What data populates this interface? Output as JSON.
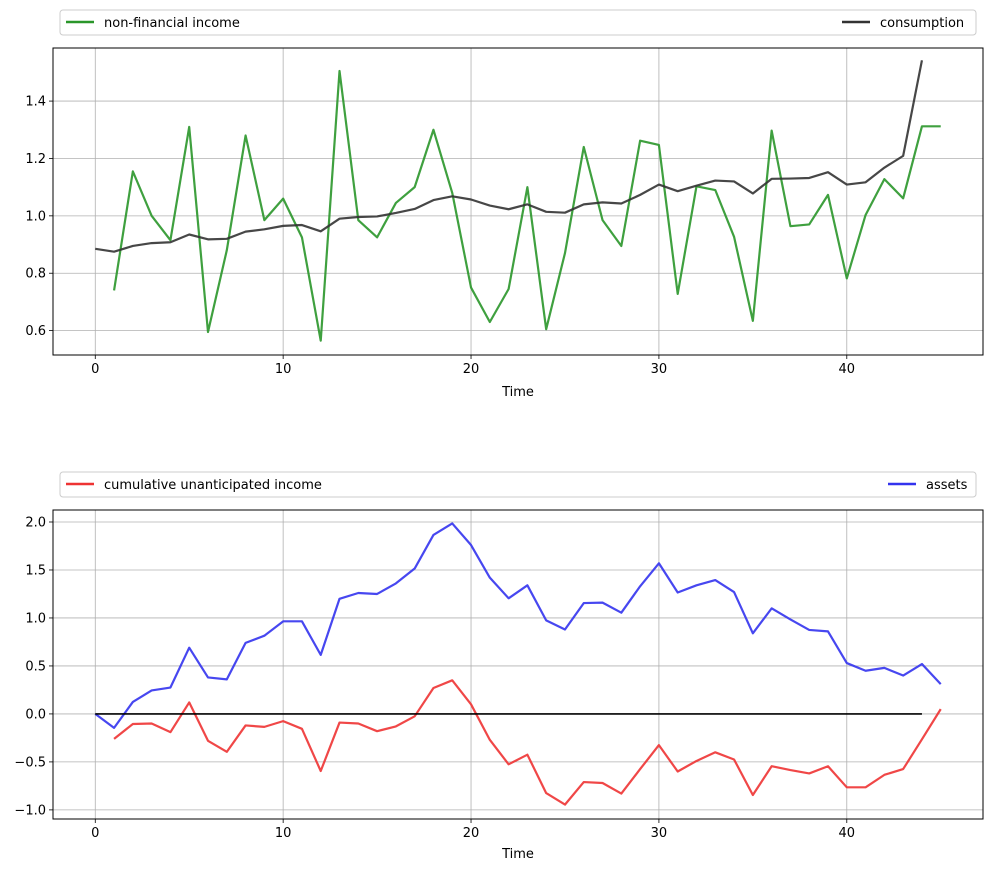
{
  "chart_data": [
    {
      "type": "line",
      "xlabel": "Time",
      "ylabel": "",
      "xlim": [
        -2.25,
        47.25
      ],
      "ylim": [
        0.515,
        1.585
      ],
      "xticks": [
        0,
        10,
        20,
        30,
        40
      ],
      "yticks": [
        0.6,
        0.8,
        1.0,
        1.2,
        1.4
      ],
      "ytick_labels": [
        "0.6",
        "0.8",
        "1.0",
        "1.2",
        "1.4"
      ],
      "grid": true,
      "legend_placement": "above-plot-expanded",
      "series": [
        {
          "name": "non-financial income",
          "color": "#2a962a",
          "x": [
            1,
            2,
            3,
            4,
            5,
            6,
            7,
            8,
            9,
            10,
            11,
            12,
            13,
            14,
            15,
            16,
            17,
            18,
            19,
            20,
            21,
            22,
            23,
            24,
            25,
            26,
            27,
            28,
            29,
            30,
            31,
            32,
            33,
            34,
            35,
            36,
            37,
            38,
            39,
            40,
            41,
            42,
            43,
            44,
            45
          ],
          "y": [
            0.74,
            1.155,
            1.0,
            0.915,
            1.31,
            0.595,
            0.88,
            1.28,
            0.985,
            1.06,
            0.925,
            0.565,
            1.505,
            0.985,
            0.925,
            1.045,
            1.1,
            1.3,
            1.08,
            0.75,
            0.63,
            0.745,
            1.1,
            0.605,
            0.87,
            1.24,
            0.985,
            0.895,
            1.262,
            1.247,
            0.728,
            1.103,
            1.09,
            0.927,
            0.634,
            1.297,
            0.964,
            0.97,
            1.073,
            0.782,
            1.003,
            1.128,
            1.061,
            1.312,
            1.312
          ]
        },
        {
          "name": "consumption",
          "color": "#333333",
          "x": [
            0,
            1,
            2,
            3,
            4,
            5,
            6,
            7,
            8,
            9,
            10,
            11,
            12,
            13,
            14,
            15,
            16,
            17,
            18,
            19,
            20,
            21,
            22,
            23,
            24,
            25,
            26,
            27,
            28,
            29,
            30,
            31,
            32,
            33,
            34,
            35,
            36,
            37,
            38,
            39,
            40,
            41,
            42,
            43,
            44
          ],
          "y": [
            0.885,
            0.875,
            0.895,
            0.905,
            0.908,
            0.935,
            0.918,
            0.92,
            0.945,
            0.953,
            0.965,
            0.968,
            0.946,
            0.99,
            0.996,
            0.998,
            1.01,
            1.024,
            1.055,
            1.068,
            1.057,
            1.036,
            1.023,
            1.04,
            1.014,
            1.011,
            1.04,
            1.047,
            1.043,
            1.073,
            1.109,
            1.086,
            1.105,
            1.123,
            1.12,
            1.078,
            1.129,
            1.13,
            1.132,
            1.152,
            1.109,
            1.117,
            1.168,
            1.209,
            1.542
          ]
        }
      ]
    },
    {
      "type": "line",
      "xlabel": "Time",
      "ylabel": "",
      "xlim": [
        -2.25,
        47.25
      ],
      "ylim": [
        -1.095,
        2.125
      ],
      "xticks": [
        0,
        10,
        20,
        30,
        40
      ],
      "yticks": [
        -1.0,
        -0.5,
        0.0,
        0.5,
        1.0,
        1.5,
        2.0
      ],
      "ytick_labels": [
        "−1.0",
        "−0.5",
        "0.0",
        "0.5",
        "1.0",
        "1.5",
        "2.0"
      ],
      "grid": true,
      "legend_placement": "above-plot-expanded",
      "series": [
        {
          "name": "cumulative unanticipated income",
          "color": "#ee3333",
          "x": [
            1,
            2,
            3,
            4,
            5,
            6,
            7,
            8,
            9,
            10,
            11,
            12,
            13,
            14,
            15,
            16,
            17,
            18,
            19,
            20,
            21,
            22,
            23,
            24,
            25,
            26,
            27,
            28,
            29,
            30,
            31,
            32,
            33,
            34,
            35,
            36,
            37,
            38,
            39,
            40,
            41,
            42,
            43,
            44,
            45
          ],
          "y": [
            -0.26,
            -0.105,
            -0.1,
            -0.19,
            0.12,
            -0.28,
            -0.395,
            -0.12,
            -0.135,
            -0.075,
            -0.155,
            -0.595,
            -0.09,
            -0.1,
            -0.18,
            -0.13,
            -0.025,
            0.27,
            0.35,
            0.1,
            -0.27,
            -0.525,
            -0.425,
            -0.825,
            -0.945,
            -0.71,
            -0.72,
            -0.83,
            -0.575,
            -0.325,
            -0.6,
            -0.49,
            -0.4,
            -0.475,
            -0.845,
            -0.545,
            -0.585,
            -0.62,
            -0.545,
            -0.765,
            -0.765,
            -0.635,
            -0.575,
            -0.265,
            0.05
          ]
        },
        {
          "name": "assets",
          "color": "#3333ee",
          "x": [
            0,
            1,
            2,
            3,
            4,
            5,
            6,
            7,
            8,
            9,
            10,
            11,
            12,
            13,
            14,
            15,
            16,
            17,
            18,
            19,
            20,
            21,
            22,
            23,
            24,
            25,
            26,
            27,
            28,
            29,
            30,
            31,
            32,
            33,
            34,
            35,
            36,
            37,
            38,
            39,
            40,
            41,
            42,
            43,
            44,
            45
          ],
          "y": [
            0.0,
            -0.145,
            0.125,
            0.245,
            0.275,
            0.69,
            0.38,
            0.36,
            0.74,
            0.815,
            0.965,
            0.965,
            0.615,
            1.2,
            1.26,
            1.25,
            1.36,
            1.515,
            1.865,
            1.985,
            1.76,
            1.42,
            1.205,
            1.34,
            0.975,
            0.88,
            1.155,
            1.16,
            1.055,
            1.33,
            1.57,
            1.265,
            1.34,
            1.395,
            1.27,
            0.84,
            1.1,
            0.985,
            0.875,
            0.86,
            0.53,
            0.45,
            0.48,
            0.4,
            0.52,
            0.31
          ]
        },
        {
          "name": "",
          "color": "#000000",
          "x": [
            0,
            44
          ],
          "y": [
            0.0,
            0.0
          ]
        }
      ]
    }
  ]
}
